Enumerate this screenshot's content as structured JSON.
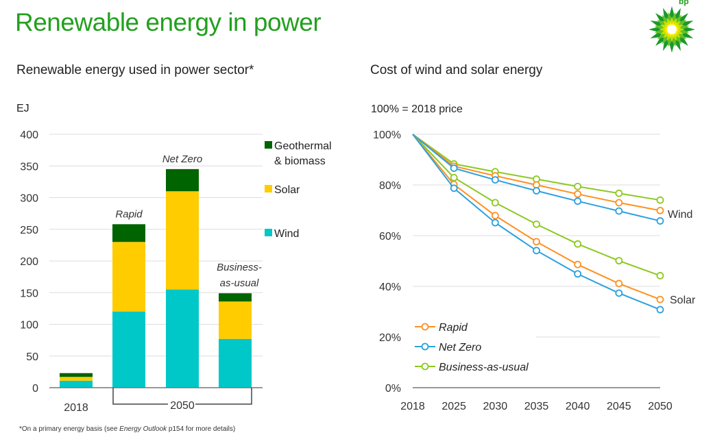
{
  "page": {
    "title": "Renewable energy in power",
    "footnote_pre": "*On a primary energy basis (see ",
    "footnote_italic": "Energy Outlook",
    "footnote_post": " p154 for more details)",
    "logo_text": "bp",
    "colors": {
      "title": "#22a01e"
    }
  },
  "chart_data": [
    {
      "type": "bar",
      "stacked": true,
      "title": "Renewable energy used in power sector*",
      "ylabel": "EJ",
      "ylim": [
        0,
        400
      ],
      "yticks": [
        0,
        50,
        100,
        150,
        200,
        250,
        300,
        350,
        400
      ],
      "grid": true,
      "legend_placement": "right",
      "categories": [
        "2018",
        "Rapid",
        "Net Zero",
        "Business-as-usual"
      ],
      "category_labels": [
        "",
        "Rapid",
        "Net Zero",
        "Business-as-usual"
      ],
      "category_labels_lines": [
        [],
        [
          "Rapid"
        ],
        [
          "Net Zero"
        ],
        [
          "Business-",
          "as-usual"
        ]
      ],
      "group_labels": {
        "2018": "2018",
        "2050": "2050"
      },
      "series": [
        {
          "name": "Wind",
          "color": "#00c8c8",
          "values": [
            11,
            120,
            155,
            77
          ]
        },
        {
          "name": "Solar",
          "color": "#ffcc00",
          "values": [
            6,
            110,
            155,
            59
          ]
        },
        {
          "name": "Geothermal & biomass",
          "legend_lines": [
            "Geothermal",
            "& biomass"
          ],
          "color": "#006400",
          "values": [
            6,
            28,
            35,
            13
          ]
        }
      ]
    },
    {
      "type": "line",
      "title": "Cost of wind and solar energy",
      "ylabel": "100% = 2018 price",
      "ylim": [
        0,
        100
      ],
      "yticks": [
        "0%",
        "20%",
        "40%",
        "60%",
        "80%",
        "100%"
      ],
      "grid": true,
      "legend_placement": "bottom-left",
      "x": [
        "2018",
        "2025",
        "2030",
        "2035",
        "2040",
        "2045",
        "2050"
      ],
      "annotations": [
        "Wind",
        "Solar"
      ],
      "legend": [
        {
          "name": "Rapid",
          "color": "#ff9020"
        },
        {
          "name": "Net Zero",
          "color": "#2aa0e0"
        },
        {
          "name": "Business-as-usual",
          "color": "#8cc820"
        }
      ],
      "series": [
        {
          "scenario": "Business-as-usual",
          "group": "Wind",
          "color": "#8cc820",
          "values": [
            100,
            88.3,
            85.2,
            82.3,
            79.4,
            76.7,
            74.0
          ]
        },
        {
          "scenario": "Rapid",
          "group": "Wind",
          "color": "#ff9020",
          "values": [
            100,
            87.4,
            83.6,
            80.0,
            76.4,
            73.0,
            69.9
          ]
        },
        {
          "scenario": "Net Zero",
          "group": "Wind",
          "color": "#2aa0e0",
          "values": [
            100,
            86.6,
            82.0,
            77.7,
            73.6,
            69.7,
            65.8
          ]
        },
        {
          "scenario": "Business-as-usual",
          "group": "Solar",
          "color": "#8cc820",
          "values": [
            100,
            82.9,
            73.0,
            64.5,
            56.7,
            50.1,
            44.2
          ]
        },
        {
          "scenario": "Rapid",
          "group": "Solar",
          "color": "#ff9020",
          "values": [
            100,
            80.2,
            67.9,
            57.6,
            48.6,
            41.1,
            34.8
          ]
        },
        {
          "scenario": "Net Zero",
          "group": "Solar",
          "color": "#2aa0e0",
          "values": [
            100,
            78.7,
            65.1,
            54.1,
            44.9,
            37.3,
            30.8
          ]
        }
      ]
    }
  ]
}
